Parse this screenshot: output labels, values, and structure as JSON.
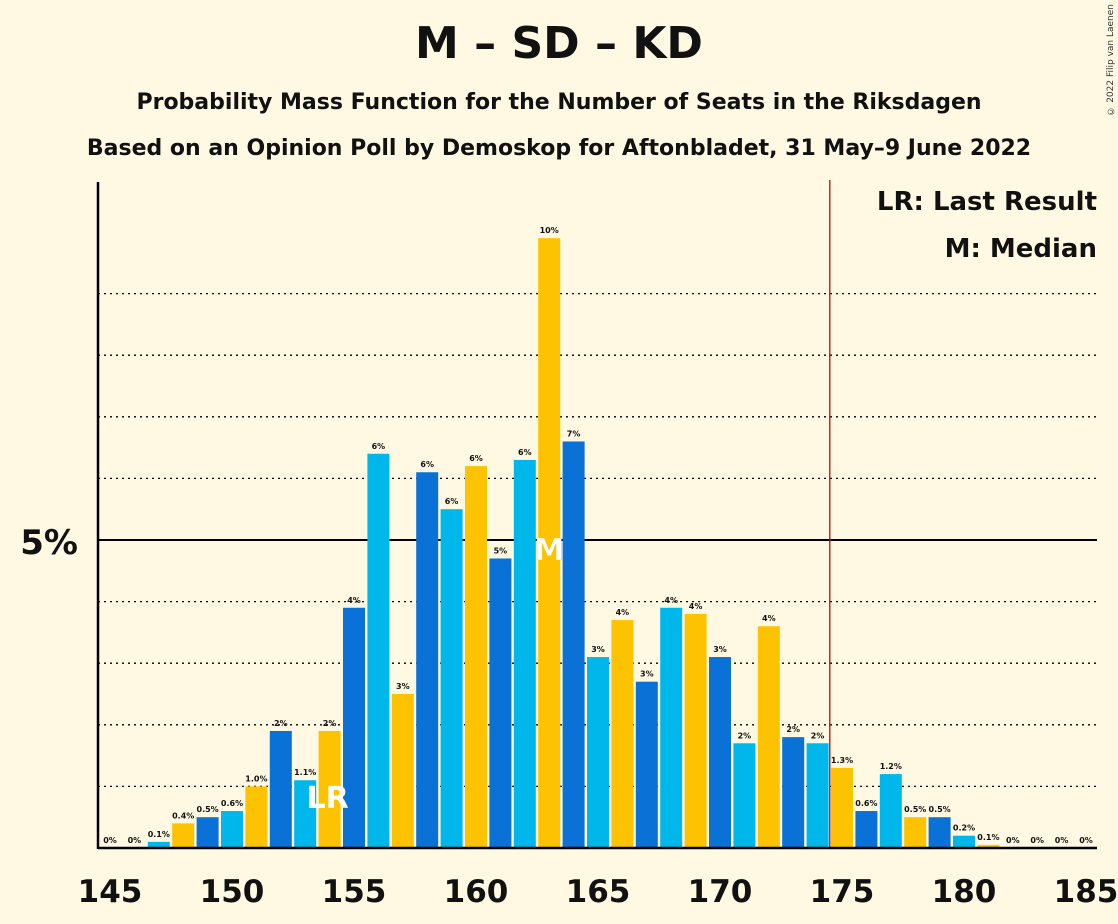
{
  "title": "M – SD – KD",
  "subtitle1": "Probability Mass Function for the Number of Seats in the Riksdagen",
  "subtitle2": "Based on an Opinion Poll by Demoskop for Aftonbladet, 31 May–9 June 2022",
  "copyright": "© 2022 Filip van Laenen",
  "legend": {
    "lr": "LR: Last Result",
    "m": "M: Median"
  },
  "colors": {
    "background": "#fff9e3",
    "blue": "#0a72d7",
    "lightblue": "#00b7ec",
    "yellow": "#fec300",
    "majority_line": "#cc0000",
    "axis": "#000000"
  },
  "chart_data": {
    "type": "bar",
    "xlim": [
      145,
      185
    ],
    "ylim": [
      0,
      10
    ],
    "x_ticks": [
      145,
      150,
      155,
      160,
      165,
      170,
      175,
      180,
      185
    ],
    "y_tick_label": "5%",
    "y_tick_value": 5,
    "gridlines": [
      1,
      2,
      3,
      4,
      6,
      7,
      8,
      9
    ],
    "majority_line": 174.5,
    "last_result_seat": 154,
    "last_result_label": "LR",
    "median_seat": 163,
    "median_label": "M",
    "bars": [
      {
        "seat": 145,
        "value": 0.0,
        "label": "0%",
        "color": "lightblue"
      },
      {
        "seat": 146,
        "value": 0.0,
        "label": "0%",
        "color": "yellow"
      },
      {
        "seat": 147,
        "value": 0.1,
        "label": "0.1%",
        "color": "lightblue"
      },
      {
        "seat": 148,
        "value": 0.4,
        "label": "0.4%",
        "color": "yellow"
      },
      {
        "seat": 149,
        "value": 0.5,
        "label": "0.5%",
        "color": "blue"
      },
      {
        "seat": 150,
        "value": 0.6,
        "label": "0.6%",
        "color": "lightblue"
      },
      {
        "seat": 151,
        "value": 1.0,
        "label": "1.0%",
        "color": "yellow"
      },
      {
        "seat": 152,
        "value": 1.9,
        "label": "2%",
        "color": "blue"
      },
      {
        "seat": 153,
        "value": 1.1,
        "label": "1.1%",
        "color": "lightblue"
      },
      {
        "seat": 154,
        "value": 1.9,
        "label": "2%",
        "color": "yellow"
      },
      {
        "seat": 155,
        "value": 3.9,
        "label": "4%",
        "color": "blue"
      },
      {
        "seat": 156,
        "value": 6.4,
        "label": "6%",
        "color": "lightblue"
      },
      {
        "seat": 157,
        "value": 2.5,
        "label": "3%",
        "color": "yellow"
      },
      {
        "seat": 158,
        "value": 6.1,
        "label": "6%",
        "color": "blue"
      },
      {
        "seat": 159,
        "value": 5.5,
        "label": "6%",
        "color": "lightblue"
      },
      {
        "seat": 160,
        "value": 6.2,
        "label": "6%",
        "color": "yellow"
      },
      {
        "seat": 161,
        "value": 4.7,
        "label": "5%",
        "color": "blue"
      },
      {
        "seat": 162,
        "value": 6.3,
        "label": "6%",
        "color": "lightblue"
      },
      {
        "seat": 163,
        "value": 9.9,
        "label": "10%",
        "color": "yellow"
      },
      {
        "seat": 164,
        "value": 6.6,
        "label": "7%",
        "color": "blue"
      },
      {
        "seat": 165,
        "value": 3.1,
        "label": "3%",
        "color": "lightblue"
      },
      {
        "seat": 166,
        "value": 3.7,
        "label": "4%",
        "color": "yellow"
      },
      {
        "seat": 167,
        "value": 2.7,
        "label": "3%",
        "color": "blue"
      },
      {
        "seat": 168,
        "value": 3.9,
        "label": "4%",
        "color": "lightblue"
      },
      {
        "seat": 169,
        "value": 3.8,
        "label": "4%",
        "color": "yellow"
      },
      {
        "seat": 170,
        "value": 3.1,
        "label": "3%",
        "color": "blue"
      },
      {
        "seat": 171,
        "value": 1.7,
        "label": "2%",
        "color": "lightblue"
      },
      {
        "seat": 172,
        "value": 3.6,
        "label": "4%",
        "color": "yellow"
      },
      {
        "seat": 173,
        "value": 1.8,
        "label": "2%",
        "color": "blue"
      },
      {
        "seat": 174,
        "value": 1.7,
        "label": "2%",
        "color": "lightblue"
      },
      {
        "seat": 175,
        "value": 1.3,
        "label": "1.3%",
        "color": "yellow"
      },
      {
        "seat": 176,
        "value": 0.6,
        "label": "0.6%",
        "color": "blue"
      },
      {
        "seat": 177,
        "value": 1.2,
        "label": "1.2%",
        "color": "lightblue"
      },
      {
        "seat": 178,
        "value": 0.5,
        "label": "0.5%",
        "color": "yellow"
      },
      {
        "seat": 179,
        "value": 0.5,
        "label": "0.5%",
        "color": "blue"
      },
      {
        "seat": 180,
        "value": 0.2,
        "label": "0.2%",
        "color": "lightblue"
      },
      {
        "seat": 181,
        "value": 0.05,
        "label": "0.1%",
        "color": "yellow"
      },
      {
        "seat": 182,
        "value": 0.0,
        "label": "0%",
        "color": "blue"
      },
      {
        "seat": 183,
        "value": 0.0,
        "label": "0%",
        "color": "lightblue"
      },
      {
        "seat": 184,
        "value": 0.0,
        "label": "0%",
        "color": "yellow"
      },
      {
        "seat": 185,
        "value": 0.0,
        "label": "0%",
        "color": "blue"
      }
    ]
  }
}
